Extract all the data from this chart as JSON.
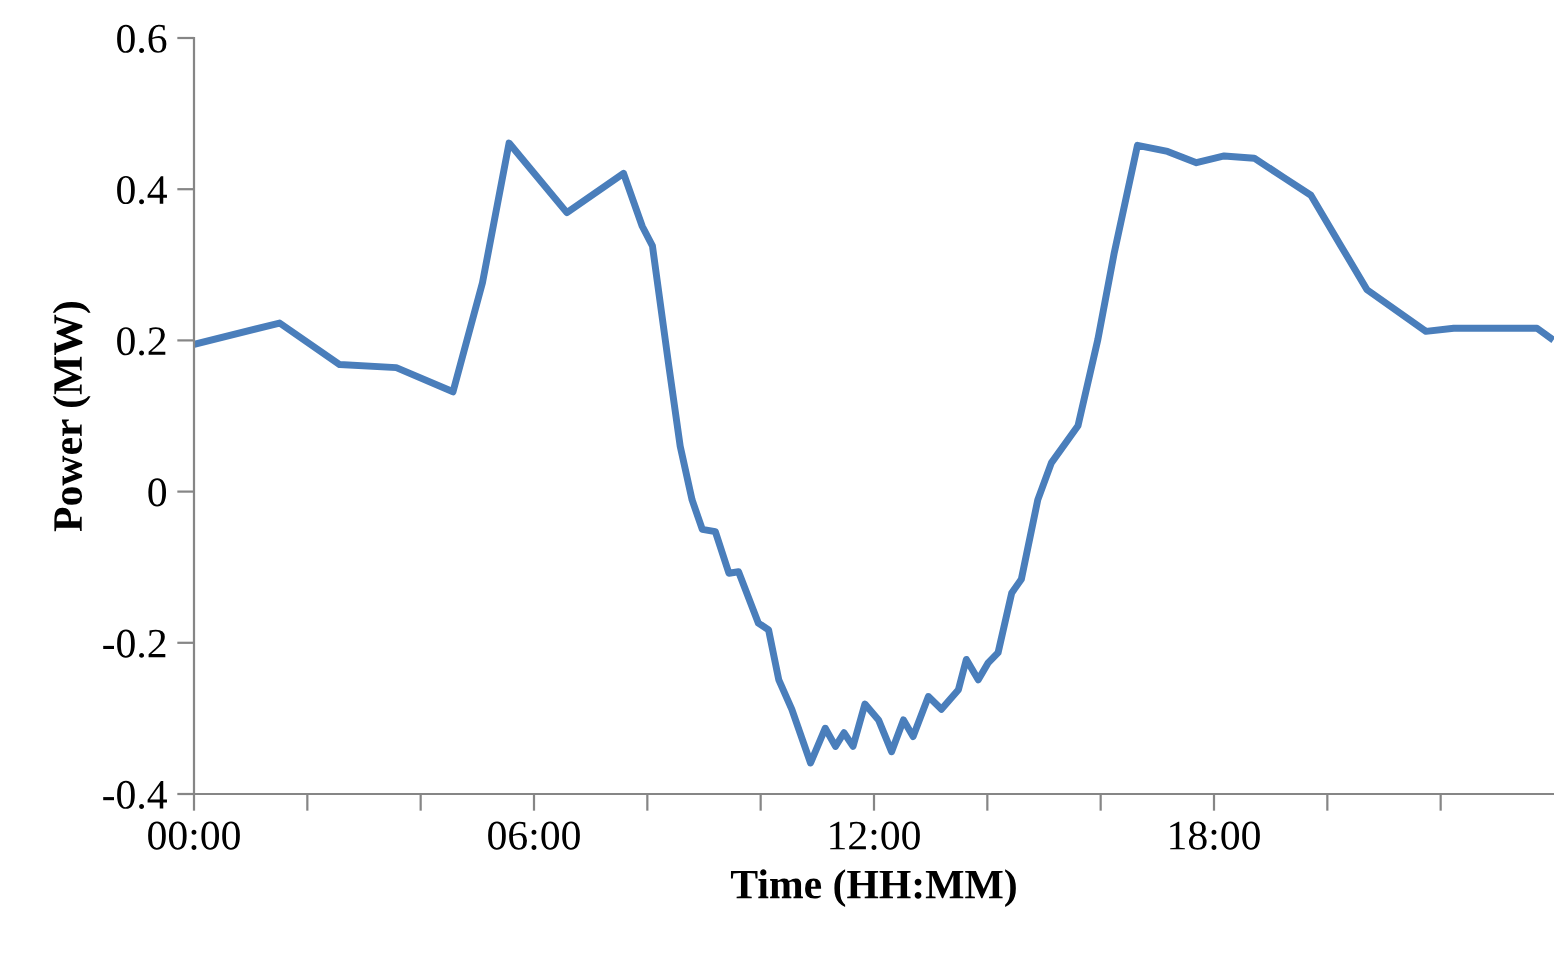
{
  "chart_data": {
    "type": "line",
    "xlabel": "Time (HH:MM)",
    "ylabel": "Power (MW)",
    "series": [
      {
        "color": "#4a7ebb",
        "x": [
          0.01,
          1.51,
          2.57,
          3.57,
          4.57,
          5.09,
          5.56,
          6.58,
          7.58,
          7.91,
          8.09,
          8.38,
          8.58,
          8.79,
          8.97,
          9.2,
          9.44,
          9.61,
          9.96,
          10.14,
          10.32,
          10.55,
          10.88,
          11.14,
          11.32,
          11.47,
          11.63,
          11.84,
          12.08,
          12.31,
          12.52,
          12.69,
          12.96,
          13.19,
          13.49,
          13.63,
          13.84,
          14.01,
          14.19,
          14.43,
          14.6,
          14.89,
          15.13,
          15.6,
          15.95,
          16.24,
          16.65,
          17.18,
          17.69,
          18.18,
          18.71,
          19.24,
          19.71,
          20.24,
          20.7,
          21.74,
          22.23,
          23.7,
          23.94
        ],
        "values": [
          0.195,
          0.223,
          0.168,
          0.164,
          0.132,
          0.276,
          0.461,
          0.369,
          0.421,
          0.351,
          0.325,
          0.166,
          0.06,
          -0.011,
          -0.05,
          -0.053,
          -0.108,
          -0.106,
          -0.174,
          -0.183,
          -0.249,
          -0.288,
          -0.359,
          -0.313,
          -0.337,
          -0.319,
          -0.337,
          -0.281,
          -0.302,
          -0.344,
          -0.302,
          -0.324,
          -0.271,
          -0.288,
          -0.262,
          -0.222,
          -0.249,
          -0.227,
          -0.213,
          -0.134,
          -0.116,
          -0.011,
          0.038,
          0.087,
          0.201,
          0.316,
          0.458,
          0.45,
          0.435,
          0.444,
          0.441,
          0.415,
          0.392,
          0.325,
          0.267,
          0.212,
          0.216,
          0.216,
          0.203
        ]
      }
    ],
    "xlim": [
      0,
      24
    ],
    "xticks": [
      {
        "value": 0,
        "label": "00:00"
      },
      {
        "value": 2,
        "label": null
      },
      {
        "value": 4,
        "label": null
      },
      {
        "value": 6,
        "label": "06:00"
      },
      {
        "value": 8,
        "label": null
      },
      {
        "value": 10,
        "label": null
      },
      {
        "value": 12,
        "label": "12:00"
      },
      {
        "value": 14,
        "label": null
      },
      {
        "value": 16,
        "label": null
      },
      {
        "value": 18,
        "label": "18:00"
      },
      {
        "value": 20,
        "label": null
      },
      {
        "value": 22,
        "label": null
      }
    ],
    "ylim": [
      -0.4,
      0.6
    ],
    "yticks": [
      -0.4,
      -0.2,
      0,
      0.2,
      0.4,
      0.6
    ],
    "grid": false,
    "legend": false,
    "marker": "none",
    "line_style": "solid"
  }
}
